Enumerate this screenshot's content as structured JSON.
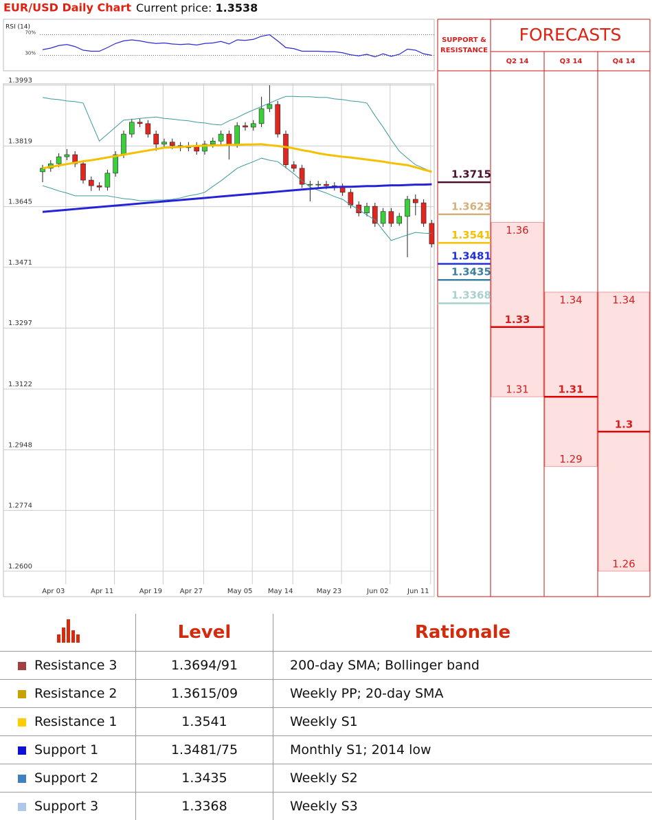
{
  "header": {
    "title": "EUR/USD Daily Chart",
    "price_label": "Current price:",
    "price": "1.3538"
  },
  "chart_data": [
    {
      "type": "line",
      "title": "RSI (14)",
      "color": "#2a2ad0",
      "values": [
        41,
        44,
        49,
        51,
        47,
        40,
        38,
        38,
        45,
        53,
        58,
        60,
        58,
        55,
        53,
        54,
        52,
        51,
        52,
        50,
        53,
        54,
        57,
        52,
        60,
        59,
        61,
        67,
        70,
        58,
        45,
        43,
        38,
        38,
        38,
        37,
        37,
        35,
        31,
        29,
        32,
        27,
        33,
        28,
        32,
        42,
        40,
        33,
        30
      ],
      "ylim": [
        0,
        100
      ],
      "yticks": [
        {
          "value": 70,
          "label": "70%"
        },
        {
          "value": 30,
          "label": "30%"
        }
      ]
    },
    {
      "type": "candlestick",
      "categories": [
        null,
        "Apr 03",
        null,
        null,
        null,
        null,
        null,
        "Apr 11",
        null,
        null,
        null,
        null,
        null,
        "Apr 19",
        null,
        null,
        null,
        null,
        "Apr 27",
        null,
        null,
        null,
        null,
        null,
        "May 05",
        null,
        null,
        null,
        null,
        "May 14",
        null,
        null,
        null,
        null,
        null,
        "May 23",
        null,
        null,
        null,
        null,
        null,
        "Jun 02",
        null,
        null,
        null,
        null,
        "Jun 11",
        null,
        null
      ],
      "open": [
        1.3745,
        1.3755,
        1.3768,
        1.3788,
        1.3794,
        1.3768,
        1.3721,
        1.3705,
        1.3701,
        1.3741,
        1.3794,
        1.3853,
        1.3887,
        1.3883,
        1.3853,
        1.3824,
        1.383,
        1.382,
        1.3814,
        1.382,
        1.3804,
        1.3824,
        1.3833,
        1.3853,
        1.3824,
        1.3877,
        1.3873,
        1.3883,
        1.3926,
        1.3938,
        1.3853,
        1.3765,
        1.3755,
        1.3709,
        1.3709,
        1.3709,
        1.3705,
        1.3701,
        1.3686,
        1.365,
        1.3627,
        1.3646,
        1.3597,
        1.3631,
        1.3597,
        1.3617,
        1.3666,
        1.3656,
        1.3597
      ],
      "high": [
        1.3765,
        1.3778,
        1.3798,
        1.381,
        1.3804,
        1.3778,
        1.3731,
        1.3715,
        1.3751,
        1.3804,
        1.3863,
        1.3897,
        1.3897,
        1.3893,
        1.3863,
        1.384,
        1.384,
        1.383,
        1.383,
        1.383,
        1.3834,
        1.3843,
        1.3863,
        1.3863,
        1.3887,
        1.3887,
        1.3893,
        1.396,
        1.3993,
        1.3948,
        1.3863,
        1.3775,
        1.3765,
        1.3719,
        1.3719,
        1.3719,
        1.3715,
        1.3711,
        1.3696,
        1.366,
        1.3656,
        1.3656,
        1.3641,
        1.3641,
        1.3627,
        1.3676,
        1.368,
        1.3666,
        1.3607
      ],
      "low": [
        1.3715,
        1.3745,
        1.3758,
        1.3778,
        1.3758,
        1.3711,
        1.369,
        1.3691,
        1.3691,
        1.3731,
        1.3784,
        1.3843,
        1.3873,
        1.3843,
        1.3805,
        1.3814,
        1.381,
        1.3804,
        1.3804,
        1.3794,
        1.3794,
        1.3814,
        1.3823,
        1.378,
        1.3814,
        1.3863,
        1.3863,
        1.3873,
        1.3916,
        1.3843,
        1.3755,
        1.3745,
        1.3699,
        1.366,
        1.3699,
        1.3695,
        1.3691,
        1.3676,
        1.364,
        1.3617,
        1.3617,
        1.3587,
        1.3587,
        1.3587,
        1.359,
        1.35,
        1.362,
        1.3587,
        1.3528
      ],
      "close": [
        1.3755,
        1.3768,
        1.3788,
        1.3794,
        1.3768,
        1.3721,
        1.3705,
        1.3701,
        1.3741,
        1.3794,
        1.3853,
        1.3887,
        1.3883,
        1.3853,
        1.3824,
        1.383,
        1.382,
        1.3814,
        1.382,
        1.3804,
        1.3824,
        1.3833,
        1.3853,
        1.3824,
        1.3877,
        1.3873,
        1.3883,
        1.3926,
        1.3938,
        1.3853,
        1.3765,
        1.3755,
        1.3709,
        1.3709,
        1.3709,
        1.3705,
        1.3701,
        1.3686,
        1.365,
        1.3627,
        1.3646,
        1.3597,
        1.3631,
        1.3597,
        1.3617,
        1.3666,
        1.3656,
        1.3597,
        1.3538
      ],
      "up_color": "#3ccf3c",
      "down_color": "#e0261e",
      "series": [
        {
          "color": "#3a9a9a",
          "values": [
            1.3958,
            1.3954,
            1.3952,
            1.3948,
            1.3946,
            1.3942,
            1.3887,
            1.3833,
            1.3853,
            1.3873,
            1.3893,
            1.3895,
            1.3898,
            1.39,
            1.3902,
            1.3898,
            1.3896,
            1.3893,
            1.3891,
            1.3887,
            1.3885,
            1.3881,
            1.3879,
            1.3891,
            1.39,
            1.3912,
            1.3922,
            1.3932,
            1.3942,
            1.3952,
            1.3961,
            1.3961,
            1.396,
            1.396,
            1.3958,
            1.3958,
            1.3954,
            1.3952,
            1.3948,
            1.3946,
            1.3942,
            1.3906,
            1.3873,
            1.3837,
            1.3804,
            1.3784,
            1.3765,
            1.3755,
            1.3745
          ]
        },
        {
          "color": "#3a9a9a",
          "values": [
            1.3705,
            1.3698,
            1.369,
            1.3684,
            1.3676,
            1.3676,
            1.3676,
            1.3676,
            1.3676,
            1.3672,
            1.3668,
            1.3666,
            1.3662,
            1.3662,
            1.3664,
            1.3664,
            1.3666,
            1.367,
            1.3676,
            1.368,
            1.3686,
            1.3703,
            1.3719,
            1.3737,
            1.3755,
            1.3765,
            1.3774,
            1.3784,
            1.3778,
            1.3774,
            1.3757,
            1.3739,
            1.3719,
            1.3701,
            1.3692,
            1.3684,
            1.3674,
            1.3666,
            1.365,
            1.3636,
            1.3621,
            1.3607,
            1.3577,
            1.3548,
            1.3556,
            1.3564,
            1.3571,
            1.3569,
            1.3568
          ]
        },
        {
          "color": "#f5c000",
          "values": [
            1.3755,
            1.3759,
            1.3763,
            1.3767,
            1.3771,
            1.3775,
            1.3778,
            1.3782,
            1.3786,
            1.379,
            1.3794,
            1.3798,
            1.3802,
            1.3806,
            1.381,
            1.3814,
            1.3815,
            1.3816,
            1.3818,
            1.3819,
            1.382,
            1.3821,
            1.3821,
            1.3822,
            1.3822,
            1.3823,
            1.3823,
            1.3824,
            1.3821,
            1.3819,
            1.3816,
            1.3812,
            1.3807,
            1.3803,
            1.3798,
            1.3794,
            1.3791,
            1.3788,
            1.3786,
            1.3783,
            1.378,
            1.3777,
            1.3774,
            1.377,
            1.3767,
            1.3764,
            1.3758,
            1.3751,
            1.3745
          ]
        },
        {
          "color": "#2424d6",
          "values": [
            1.363,
            1.3632,
            1.3634,
            1.3636,
            1.3638,
            1.364,
            1.3642,
            1.3644,
            1.3646,
            1.3648,
            1.365,
            1.3652,
            1.3654,
            1.3656,
            1.3658,
            1.366,
            1.3662,
            1.3664,
            1.3666,
            1.3668,
            1.367,
            1.3672,
            1.3674,
            1.3676,
            1.3678,
            1.368,
            1.3682,
            1.3684,
            1.3686,
            1.3688,
            1.369,
            1.3692,
            1.3694,
            1.3696,
            1.3698,
            1.37,
            1.3701,
            1.3702,
            1.3702,
            1.3703,
            1.3704,
            1.3704,
            1.3705,
            1.3706,
            1.3706,
            1.3707,
            1.3708,
            1.3708,
            1.3709
          ]
        }
      ],
      "ylim": [
        1.2527,
        1.3997
      ],
      "yticks": [
        1.3993,
        1.3819,
        1.3645,
        1.3471,
        1.3297,
        1.3122,
        1.2948,
        1.2774,
        {
          "value": 1.26,
          "label": "1.2600"
        }
      ],
      "grid": true,
      "levels": {
        "title": "SUPPORT & RESISTANCE",
        "values": [
          1.3715,
          1.3623,
          1.3541,
          1.3481,
          1.3435,
          1.3368
        ],
        "colors": [
          "#4a1030",
          "#d4b07a",
          "#f5c000",
          "#1f2ee0",
          "#3c7fa0",
          "#a8d0d0"
        ]
      },
      "forecasts": {
        "title": "FORECASTS",
        "color": "#d42020",
        "periods": [
          {
            "label": "Q2 14",
            "high": 1.36,
            "mid": 1.33,
            "low": 1.31
          },
          {
            "label": "Q3 14",
            "high": 1.34,
            "mid": 1.31,
            "low": 1.29
          },
          {
            "label": "Q4 14",
            "high": 1.34,
            "mid": 1.3,
            "low": 1.26
          }
        ]
      }
    }
  ],
  "table": {
    "header": [
      "Level",
      "Rationale"
    ],
    "rows": [
      {
        "name": "Resistance 3",
        "color": "#a04040",
        "level": "1.3694/91",
        "rationale": "200-day SMA; Bollinger band"
      },
      {
        "name": "Resistance 2",
        "color": "#c8a000",
        "level": "1.3615/09",
        "rationale": "Weekly PP; 20-day SMA"
      },
      {
        "name": "Resistance 1",
        "color": "#ffcc00",
        "level": "1.3541",
        "rationale": "Weekly S1"
      },
      {
        "name": "Support 1",
        "color": "#1010d0",
        "level": "1.3481/75",
        "rationale": "Monthly S1; 2014 low"
      },
      {
        "name": "Support 2",
        "color": "#4080c0",
        "level": "1.3435",
        "rationale": "Weekly S2"
      },
      {
        "name": "Support 3",
        "color": "#b0c8e8",
        "level": "1.3368",
        "rationale": "Weekly S3"
      }
    ]
  }
}
